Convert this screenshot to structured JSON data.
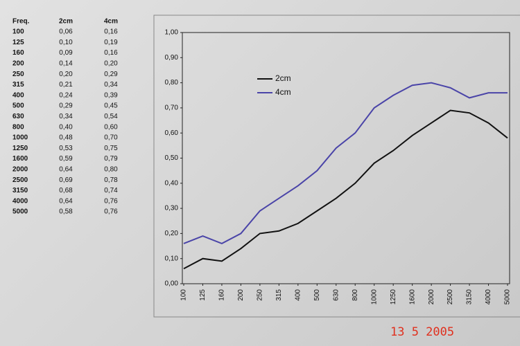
{
  "table": {
    "header": [
      "Freq.",
      "2cm",
      "4cm"
    ],
    "rows": [
      [
        "100",
        "0,06",
        "0,16"
      ],
      [
        "125",
        "0,10",
        "0,19"
      ],
      [
        "160",
        "0,09",
        "0,16"
      ],
      [
        "200",
        "0,14",
        "0,20"
      ],
      [
        "250",
        "0,20",
        "0,29"
      ],
      [
        "315",
        "0,21",
        "0,34"
      ],
      [
        "400",
        "0,24",
        "0,39"
      ],
      [
        "500",
        "0,29",
        "0,45"
      ],
      [
        "630",
        "0,34",
        "0,54"
      ],
      [
        "800",
        "0,40",
        "0,60"
      ],
      [
        "1000",
        "0,48",
        "0,70"
      ],
      [
        "1250",
        "0,53",
        "0,75"
      ],
      [
        "1600",
        "0,59",
        "0,79"
      ],
      [
        "2000",
        "0,64",
        "0,80"
      ],
      [
        "2500",
        "0,69",
        "0,78"
      ],
      [
        "3150",
        "0,68",
        "0,74"
      ],
      [
        "4000",
        "0,64",
        "0,76"
      ],
      [
        "5000",
        "0,58",
        "0,76"
      ]
    ]
  },
  "chart_data": {
    "type": "line",
    "categories": [
      "100",
      "125",
      "160",
      "200",
      "250",
      "315",
      "400",
      "500",
      "630",
      "800",
      "1000",
      "1250",
      "1600",
      "2000",
      "2500",
      "3150",
      "4000",
      "5000"
    ],
    "series": [
      {
        "name": "2cm",
        "color": "#111111",
        "values": [
          0.06,
          0.1,
          0.09,
          0.14,
          0.2,
          0.21,
          0.24,
          0.29,
          0.34,
          0.4,
          0.48,
          0.53,
          0.59,
          0.64,
          0.69,
          0.68,
          0.64,
          0.58
        ]
      },
      {
        "name": "4cm",
        "color": "#4a44a8",
        "values": [
          0.16,
          0.19,
          0.16,
          0.2,
          0.29,
          0.34,
          0.39,
          0.45,
          0.54,
          0.6,
          0.7,
          0.75,
          0.79,
          0.8,
          0.78,
          0.74,
          0.76,
          0.76
        ]
      }
    ],
    "ylim": [
      0,
      1
    ],
    "yticks": [
      {
        "value": 0,
        "label": "0,00"
      },
      {
        "value": 0.1,
        "label": "0,10"
      },
      {
        "value": 0.2,
        "label": "0,20"
      },
      {
        "value": 0.3,
        "label": "0,30"
      },
      {
        "value": 0.4,
        "label": "0,40"
      },
      {
        "value": 0.5,
        "label": "0,50"
      },
      {
        "value": 0.6,
        "label": "0,60"
      },
      {
        "value": 0.7,
        "label": "0,70"
      },
      {
        "value": 0.8,
        "label": "0,80"
      },
      {
        "value": 0.9,
        "label": "0,90"
      },
      {
        "value": 1,
        "label": "1,00"
      }
    ],
    "grid": false,
    "legend": "upper left"
  },
  "date_stamp": "13  5 2005"
}
